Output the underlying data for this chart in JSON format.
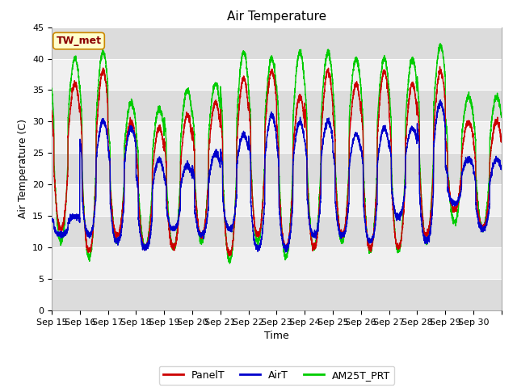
{
  "title": "Air Temperature",
  "ylabel": "Air Temperature (C)",
  "xlabel": "Time",
  "annotation": "TW_met",
  "ylim": [
    0,
    45
  ],
  "yticks": [
    0,
    5,
    10,
    15,
    20,
    25,
    30,
    35,
    40,
    45
  ],
  "xtick_labels": [
    "Sep 15",
    "Sep 16",
    "Sep 17",
    "Sep 18",
    "Sep 19",
    "Sep 20",
    "Sep 21",
    "Sep 22",
    "Sep 23",
    "Sep 24",
    "Sep 25",
    "Sep 26",
    "Sep 27",
    "Sep 28",
    "Sep 29",
    "Sep 30"
  ],
  "line_colors": {
    "PanelT": "#cc0000",
    "AirT": "#0000cc",
    "AM25T_PRT": "#00cc00"
  },
  "line_widths": {
    "PanelT": 1.0,
    "AirT": 1.0,
    "AM25T_PRT": 1.0
  },
  "bg_color": "#ffffff",
  "plot_bg_color": "#ffffff",
  "band_color_dark": "#dcdcdc",
  "band_color_light": "#f0f0f0",
  "title_fontsize": 11,
  "label_fontsize": 9,
  "tick_fontsize": 8,
  "legend_fontsize": 9
}
